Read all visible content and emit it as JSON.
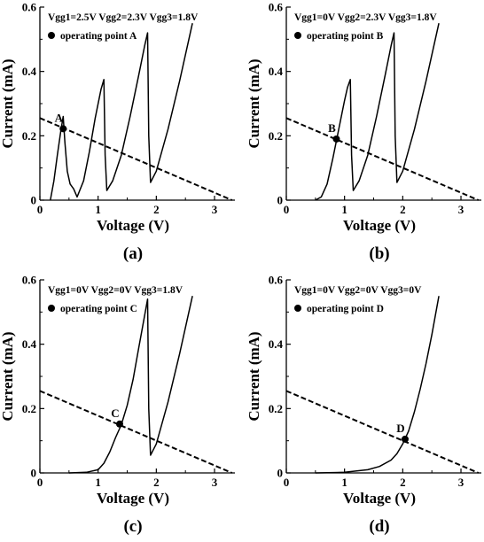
{
  "chart_data": [
    {
      "type": "line",
      "caption": "(a)",
      "annotation": "Vgg1=2.5V Vgg2=2.3V Vgg3=1.8V",
      "legend_text": "operating point A",
      "point_label": "A",
      "xlabel": "Voltage (V)",
      "ylabel": "Current (mA)",
      "xlim": [
        0,
        3.35
      ],
      "ylim": [
        0,
        0.6
      ],
      "xticks": [
        "0",
        "1",
        "2",
        "3"
      ],
      "yticks": [
        "0",
        "0.2",
        "0.4",
        "0.6"
      ],
      "series": [
        {
          "role": "IV curve",
          "style": "solid",
          "x": [
            0.18,
            0.24,
            0.3,
            0.36,
            0.4,
            0.43,
            0.47,
            0.52,
            0.58,
            0.64,
            0.75,
            0.85,
            0.95,
            1.05,
            1.1,
            1.12,
            1.15,
            1.25,
            1.4,
            1.55,
            1.7,
            1.8,
            1.85,
            1.87,
            1.9,
            2.0,
            2.2,
            2.4,
            2.62
          ],
          "y": [
            0.0,
            0.06,
            0.14,
            0.215,
            0.26,
            0.18,
            0.09,
            0.05,
            0.035,
            0.01,
            0.06,
            0.15,
            0.255,
            0.345,
            0.375,
            0.14,
            0.03,
            0.06,
            0.14,
            0.26,
            0.39,
            0.48,
            0.52,
            0.2,
            0.055,
            0.09,
            0.22,
            0.37,
            0.55
          ]
        },
        {
          "role": "load line",
          "style": "dashed",
          "x": [
            0,
            3.3
          ],
          "y": [
            0.255,
            0
          ]
        }
      ],
      "operating_point": {
        "x": 0.4,
        "y": 0.222
      }
    },
    {
      "type": "line",
      "caption": "(b)",
      "annotation": "Vgg1=0V Vgg2=2.3V Vgg3=1.8V",
      "legend_text": "operating point B",
      "point_label": "B",
      "xlabel": "Voltage (V)",
      "ylabel": "Current (mA)",
      "xlim": [
        0,
        3.35
      ],
      "ylim": [
        0,
        0.6
      ],
      "xticks": [
        "0",
        "1",
        "2",
        "3"
      ],
      "yticks": [
        "0",
        "0.2",
        "0.4",
        "0.6"
      ],
      "series": [
        {
          "role": "IV curve",
          "style": "solid",
          "x": [
            0.5,
            0.6,
            0.7,
            0.8,
            0.9,
            1.0,
            1.05,
            1.1,
            1.12,
            1.15,
            1.25,
            1.4,
            1.55,
            1.7,
            1.8,
            1.85,
            1.87,
            1.9,
            2.0,
            2.2,
            2.4,
            2.62
          ],
          "y": [
            0.0,
            0.01,
            0.05,
            0.13,
            0.22,
            0.31,
            0.35,
            0.375,
            0.14,
            0.03,
            0.06,
            0.14,
            0.26,
            0.39,
            0.48,
            0.52,
            0.2,
            0.055,
            0.09,
            0.22,
            0.37,
            0.55
          ]
        },
        {
          "role": "load line",
          "style": "dashed",
          "x": [
            0,
            3.3
          ],
          "y": [
            0.255,
            0
          ]
        }
      ],
      "operating_point": {
        "x": 0.86,
        "y": 0.19
      }
    },
    {
      "type": "line",
      "caption": "(c)",
      "annotation": "Vgg1=0V Vgg2=0V Vgg3=1.8V",
      "legend_text": "operating point C",
      "point_label": "C",
      "xlabel": "Voltage (V)",
      "ylabel": "Current (mA)",
      "xlim": [
        0,
        3.35
      ],
      "ylim": [
        0,
        0.6
      ],
      "xticks": [
        "0",
        "1",
        "2",
        "3"
      ],
      "yticks": [
        "0",
        "0.2",
        "0.4",
        "0.6"
      ],
      "series": [
        {
          "role": "IV curve",
          "style": "solid",
          "x": [
            0.5,
            0.8,
            1.0,
            1.1,
            1.2,
            1.3,
            1.4,
            1.5,
            1.6,
            1.7,
            1.8,
            1.85,
            1.87,
            1.9,
            2.0,
            2.2,
            2.4,
            2.62
          ],
          "y": [
            0.0,
            0.002,
            0.01,
            0.03,
            0.065,
            0.11,
            0.15,
            0.21,
            0.29,
            0.39,
            0.49,
            0.54,
            0.2,
            0.055,
            0.09,
            0.22,
            0.37,
            0.55
          ]
        },
        {
          "role": "load line",
          "style": "dashed",
          "x": [
            0,
            3.3
          ],
          "y": [
            0.255,
            0
          ]
        }
      ],
      "operating_point": {
        "x": 1.37,
        "y": 0.152
      }
    },
    {
      "type": "line",
      "caption": "(d)",
      "annotation": "Vgg1=0V Vgg2=0V Vgg3=0V",
      "legend_text": "operating point D",
      "point_label": "D",
      "xlabel": "Voltage (V)",
      "ylabel": "Current (mA)",
      "xlim": [
        0,
        3.35
      ],
      "ylim": [
        0,
        0.6
      ],
      "xticks": [
        "0",
        "1",
        "2",
        "3"
      ],
      "yticks": [
        "0",
        "0.2",
        "0.4",
        "0.6"
      ],
      "series": [
        {
          "role": "IV curve",
          "style": "solid",
          "x": [
            0.5,
            1.0,
            1.4,
            1.6,
            1.8,
            1.9,
            2.0,
            2.1,
            2.2,
            2.3,
            2.4,
            2.5,
            2.62
          ],
          "y": [
            0.0,
            0.002,
            0.01,
            0.02,
            0.04,
            0.06,
            0.09,
            0.13,
            0.19,
            0.26,
            0.34,
            0.43,
            0.55
          ]
        },
        {
          "role": "load line",
          "style": "dashed",
          "x": [
            0,
            3.3
          ],
          "y": [
            0.255,
            0
          ]
        }
      ],
      "operating_point": {
        "x": 2.04,
        "y": 0.105
      }
    }
  ]
}
